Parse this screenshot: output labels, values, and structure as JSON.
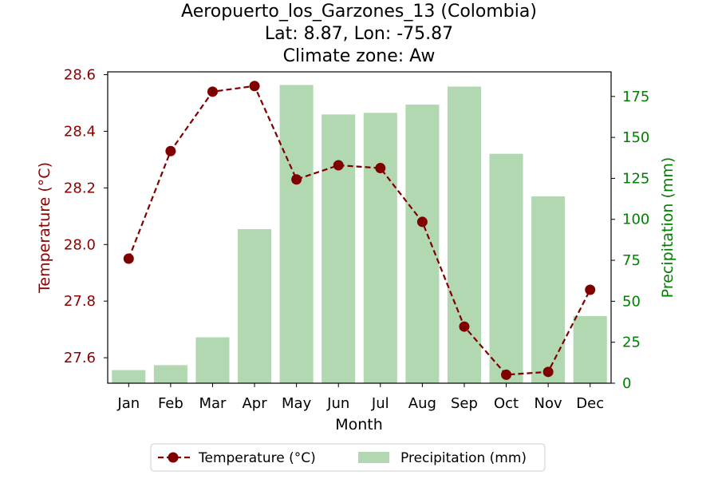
{
  "chart_data": {
    "type": "bar",
    "title": {
      "line1": "Aeropuerto_los_Garzones_13 (Colombia)",
      "line2": "Lat: 8.87, Lon: -75.87",
      "line3": "Climate zone: Aw"
    },
    "xlabel": "Month",
    "categories": [
      "Jan",
      "Feb",
      "Mar",
      "Apr",
      "May",
      "Jun",
      "Jul",
      "Aug",
      "Sep",
      "Oct",
      "Nov",
      "Dec"
    ],
    "series": [
      {
        "name": "Precipitation (mm)",
        "type": "bar",
        "axis": "right",
        "values": [
          8,
          11,
          28,
          94,
          182,
          164,
          165,
          170,
          181,
          140,
          114,
          41
        ]
      },
      {
        "name": "Temperature (°C)",
        "type": "line",
        "axis": "left",
        "values": [
          27.95,
          28.33,
          28.54,
          28.56,
          28.23,
          28.28,
          28.27,
          28.08,
          27.71,
          27.54,
          27.55,
          27.84
        ]
      }
    ],
    "y_left": {
      "label": "Temperature (°C)",
      "ylim": [
        27.51,
        28.61
      ],
      "ticks": [
        "27.6",
        "27.8",
        "28.0",
        "28.2",
        "28.4",
        "28.6"
      ]
    },
    "y_right": {
      "label": "Precipitation (mm)",
      "ylim": [
        0,
        190
      ],
      "ticks": [
        "0",
        "25",
        "50",
        "75",
        "100",
        "125",
        "150",
        "175"
      ]
    },
    "legend": {
      "placement": "bottom-center",
      "temperature_label": "Temperature (°C)",
      "precipitation_label": "Precipitation (mm)"
    },
    "grid": false,
    "colors": {
      "temperature": "#800000",
      "precipitation": "#2ca02c",
      "precip_bar_fill": "#b2d8b2",
      "left_axis": "#8b0000",
      "right_axis": "#008000"
    }
  }
}
